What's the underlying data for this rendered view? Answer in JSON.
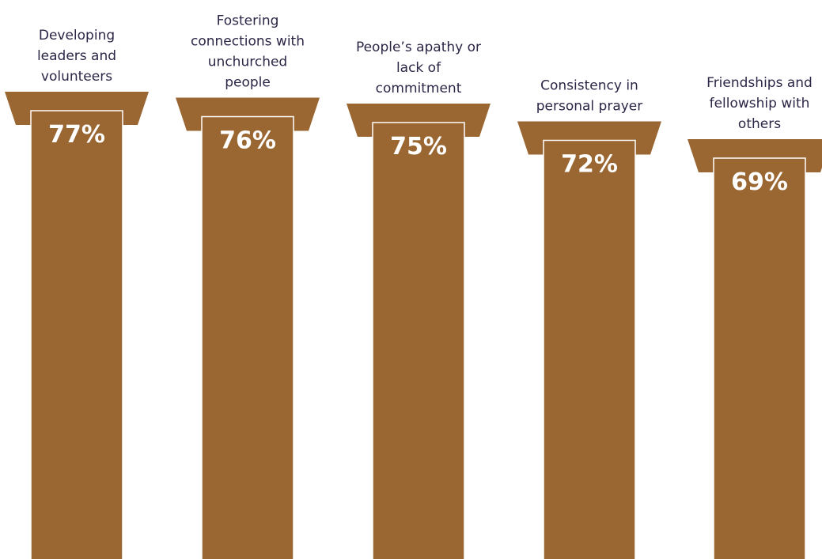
{
  "chart_data": {
    "type": "bar",
    "title": "",
    "xlabel": "",
    "ylabel": "",
    "categories": [
      "Developing leaders and volunteers",
      "Fostering connections with unchurched people",
      "People’s apathy or lack of commitment",
      "Consistency in personal prayer",
      "Friendships and fellowship with others"
    ],
    "category_lines": [
      [
        "Developing",
        "leaders and",
        "volunteers"
      ],
      [
        "Fostering",
        "connections with",
        "unchurched",
        "people"
      ],
      [
        "People’s apathy or",
        "lack of",
        "commitment"
      ],
      [
        "Consistency in",
        "personal prayer"
      ],
      [
        "Friendships and",
        "fellowship with",
        "others"
      ]
    ],
    "values": [
      77,
      76,
      75,
      72,
      69
    ],
    "value_labels": [
      "77%",
      "76%",
      "75%",
      "72%",
      "69%"
    ],
    "ylim": [
      0,
      100
    ],
    "grid": false,
    "legend": "none",
    "colors": {
      "bar": "#9a6733",
      "bar_outline": "#ffffff",
      "label_text": "#2d2546",
      "value_text": "#ffffff"
    }
  }
}
